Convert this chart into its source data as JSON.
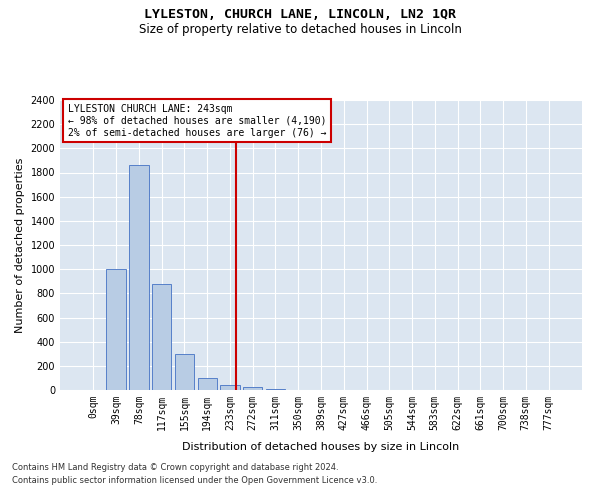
{
  "title": "LYLESTON, CHURCH LANE, LINCOLN, LN2 1QR",
  "subtitle": "Size of property relative to detached houses in Lincoln",
  "xlabel": "Distribution of detached houses by size in Lincoln",
  "ylabel": "Number of detached properties",
  "bar_categories": [
    "0sqm",
    "39sqm",
    "78sqm",
    "117sqm",
    "155sqm",
    "194sqm",
    "233sqm",
    "272sqm",
    "311sqm",
    "350sqm",
    "389sqm",
    "427sqm",
    "466sqm",
    "505sqm",
    "544sqm",
    "583sqm",
    "622sqm",
    "661sqm",
    "700sqm",
    "738sqm",
    "777sqm"
  ],
  "bar_values": [
    0,
    1000,
    1860,
    880,
    300,
    100,
    40,
    25,
    5,
    0,
    0,
    0,
    0,
    0,
    0,
    0,
    0,
    0,
    0,
    0,
    0
  ],
  "bar_color": "#b8cce4",
  "bar_edge_color": "#4472c4",
  "ylim": [
    0,
    2400
  ],
  "yticks": [
    0,
    200,
    400,
    600,
    800,
    1000,
    1200,
    1400,
    1600,
    1800,
    2000,
    2200,
    2400
  ],
  "annotation_text": "LYLESTON CHURCH LANE: 243sqm\n← 98% of detached houses are smaller (4,190)\n2% of semi-detached houses are larger (76) →",
  "annotation_box_color": "#ffffff",
  "annotation_box_edge": "#cc0000",
  "vline_color": "#cc0000",
  "plot_bg_color": "#dce6f1",
  "footer_line1": "Contains HM Land Registry data © Crown copyright and database right 2024.",
  "footer_line2": "Contains public sector information licensed under the Open Government Licence v3.0.",
  "title_fontsize": 9.5,
  "subtitle_fontsize": 8.5,
  "axis_label_fontsize": 8,
  "tick_fontsize": 7,
  "annot_fontsize": 7
}
